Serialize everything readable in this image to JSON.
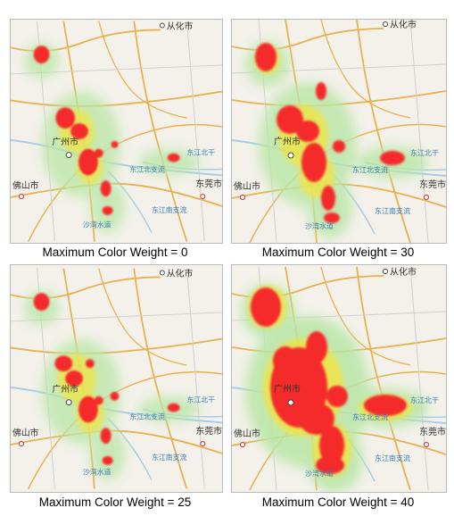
{
  "colors": {
    "map_bg": "#f3f1ea",
    "major_road": "#e8b04e",
    "minor_road": "#cfcfcf",
    "water": "#a8cce6",
    "park": "#d6edc8",
    "heat_low": "#b9e6a6",
    "heat_mid": "#f2e43c",
    "heat_high": "#f52a2a",
    "city_label": "#333333",
    "water_label": "#3d7fb8"
  },
  "map_labels": {
    "conghua": "从化市",
    "guangzhou": "广州市",
    "foshan": "佛山市",
    "dongguan": "东莞市",
    "dongjiang_north": "东江北干",
    "dongjiang_north_branch": "东江北支流",
    "dongjiang_south_branch": "东江南支流",
    "shawan": "沙湾水道"
  },
  "icons": {
    "city_marker": "city-marker-icon",
    "capital_marker": "capital-marker-icon"
  },
  "panels": [
    {
      "caption": "Maximum Color Weight = 0",
      "max_color_weight": 0
    },
    {
      "caption": "Maximum Color Weight = 30",
      "max_color_weight": 30
    },
    {
      "caption": "Maximum Color Weight = 25",
      "max_color_weight": 25
    },
    {
      "caption": "Maximum Color Weight = 40",
      "max_color_weight": 40
    }
  ]
}
